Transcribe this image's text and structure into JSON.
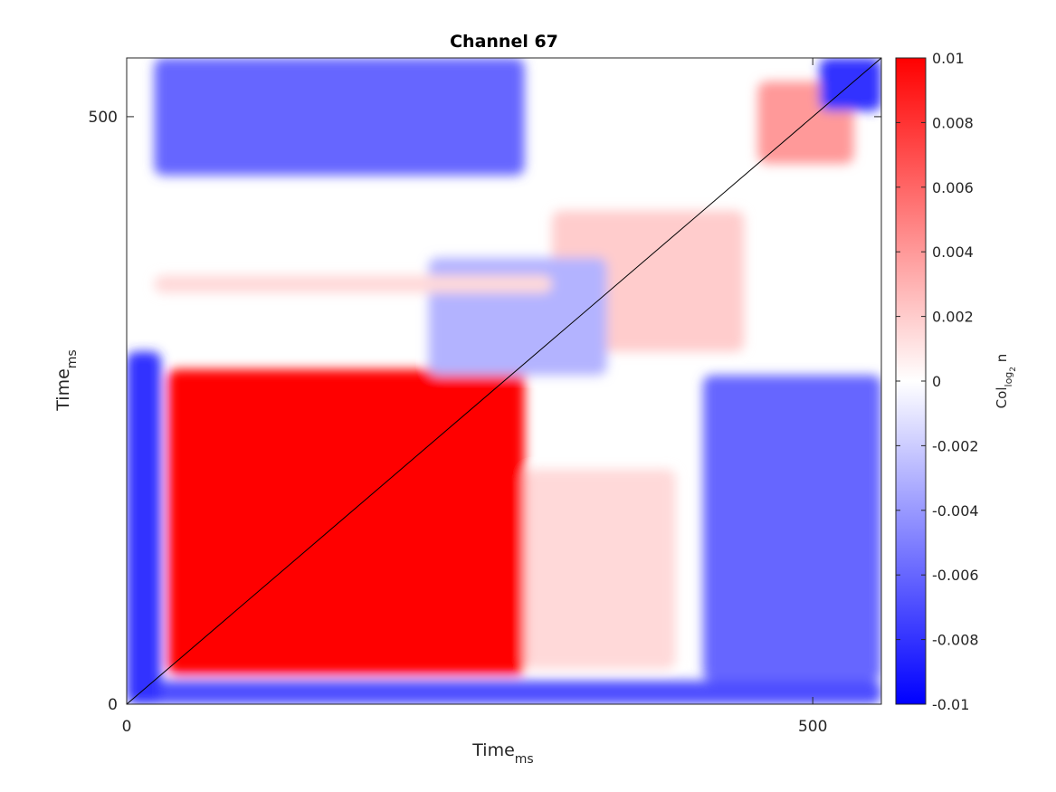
{
  "chart_data": {
    "type": "heatmap",
    "title": "Channel 67",
    "xlabel": {
      "main": "Time",
      "sub": "ms"
    },
    "ylabel": {
      "main": "Time",
      "sub": "ms"
    },
    "colorbar_label": {
      "main": "Col",
      "sub": "log",
      "subsub": "2",
      "tail": " n"
    },
    "xlim": [
      0,
      550
    ],
    "ylim": [
      0,
      550
    ],
    "xticks": [
      0,
      500
    ],
    "yticks": [
      0,
      500
    ],
    "clim": [
      -0.01,
      0.01
    ],
    "colorbar_ticks": [
      "-0.01",
      "-0.008",
      "-0.006",
      "-0.004",
      "-0.002",
      "0",
      "0.002",
      "0.004",
      "0.006",
      "0.008",
      "0.01"
    ],
    "colorbar_tick_values": [
      -0.01,
      -0.008,
      -0.006,
      -0.004,
      -0.002,
      0,
      0.002,
      0.004,
      0.006,
      0.008,
      0.01
    ],
    "colormap": {
      "low": "#0000ff",
      "mid": "#ffffff",
      "high": "#ff0000"
    },
    "diagonal_line_color": "#000000",
    "grid": false,
    "regions": [
      {
        "desc": "strong positive block",
        "x": [
          30,
          290
        ],
        "y": [
          25,
          285
        ],
        "value": 0.01
      },
      {
        "desc": "negative band bottom",
        "x": [
          0,
          550
        ],
        "y": [
          0,
          20
        ],
        "value": -0.007
      },
      {
        "desc": "negative band left",
        "x": [
          0,
          25
        ],
        "y": [
          0,
          300
        ],
        "value": -0.008
      },
      {
        "desc": "negative block top-left",
        "x": [
          20,
          290
        ],
        "y": [
          450,
          550
        ],
        "value": -0.006
      },
      {
        "desc": "negative block bottom-right",
        "x": [
          420,
          550
        ],
        "y": [
          20,
          280
        ],
        "value": -0.006
      },
      {
        "desc": "weak positive region upper-right",
        "x": [
          310,
          450
        ],
        "y": [
          300,
          420
        ],
        "value": 0.002
      },
      {
        "desc": "weak negative region middle",
        "x": [
          220,
          350
        ],
        "y": [
          280,
          380
        ],
        "value": -0.003
      },
      {
        "desc": "positive patch top-right",
        "x": [
          460,
          530
        ],
        "y": [
          460,
          530
        ],
        "value": 0.004
      },
      {
        "desc": "negative corner top-right",
        "x": [
          505,
          550
        ],
        "y": [
          505,
          550
        ],
        "value": -0.008
      },
      {
        "desc": "weak positive strip",
        "x": [
          20,
          310
        ],
        "y": [
          350,
          365
        ],
        "value": 0.0015
      },
      {
        "desc": "weak positive strip right",
        "x": [
          290,
          400
        ],
        "y": [
          30,
          200
        ],
        "value": 0.0015
      }
    ]
  }
}
